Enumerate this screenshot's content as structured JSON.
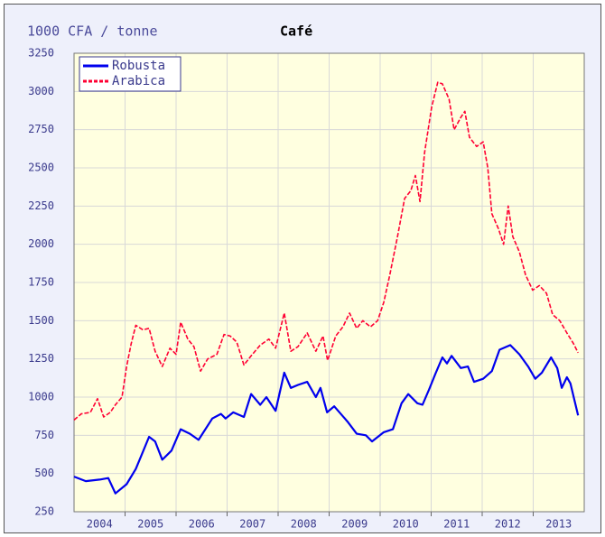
{
  "chart_data": {
    "type": "line",
    "title": "Café",
    "ylabel": "1000 CFA / tonne",
    "xlim": [
      2004,
      2014
    ],
    "ylim": [
      250,
      3250
    ],
    "yticks": [
      250,
      500,
      750,
      1000,
      1250,
      1500,
      1750,
      2000,
      2250,
      2500,
      2750,
      3000,
      3250
    ],
    "xticks": [
      {
        "value": 2004.5,
        "label": "2004"
      },
      {
        "value": 2005.5,
        "label": "2005"
      },
      {
        "value": 2006.5,
        "label": "2006"
      },
      {
        "value": 2007.5,
        "label": "2007"
      },
      {
        "value": 2008.5,
        "label": "2008"
      },
      {
        "value": 2009.5,
        "label": "2009"
      },
      {
        "value": 2010.5,
        "label": "2010"
      },
      {
        "value": 2011.5,
        "label": "2011"
      },
      {
        "value": 2012.5,
        "label": "2012"
      },
      {
        "value": 2013.5,
        "label": "2013"
      }
    ],
    "xgrid": [
      2005,
      2006,
      2007,
      2008,
      2009,
      2010,
      2011,
      2012,
      2013
    ],
    "grid": true,
    "legend": "upper left",
    "series": [
      {
        "name": "Robusta",
        "color": "#0000ee",
        "dashed": false,
        "x": [
          2004,
          2004.23,
          2004.5,
          2004.67,
          2004.81,
          2005.03,
          2005.21,
          2005.47,
          2005.59,
          2005.73,
          2005.91,
          2006.09,
          2006.27,
          2006.44,
          2006.71,
          2006.88,
          2006.97,
          2007.12,
          2007.33,
          2007.47,
          2007.65,
          2007.77,
          2007.95,
          2008.12,
          2008.25,
          2008.39,
          2008.57,
          2008.74,
          2008.83,
          2008.96,
          2009.1,
          2009.36,
          2009.54,
          2009.72,
          2009.84,
          2010.07,
          2010.25,
          2010.42,
          2010.55,
          2010.73,
          2010.83,
          2010.96,
          2011.08,
          2011.22,
          2011.31,
          2011.4,
          2011.58,
          2011.72,
          2011.84,
          2012.02,
          2012.19,
          2012.34,
          2012.55,
          2012.73,
          2012.9,
          2013.04,
          2013.17,
          2013.35,
          2013.47,
          2013.56,
          2013.66,
          2013.73,
          2013.88
        ],
        "values": [
          480,
          450,
          460,
          470,
          370,
          430,
          530,
          740,
          710,
          590,
          650,
          790,
          760,
          720,
          860,
          890,
          860,
          900,
          870,
          1020,
          950,
          1000,
          910,
          1160,
          1060,
          1080,
          1100,
          1000,
          1060,
          900,
          940,
          840,
          760,
          750,
          710,
          770,
          790,
          960,
          1020,
          960,
          950,
          1050,
          1150,
          1260,
          1220,
          1270,
          1190,
          1200,
          1100,
          1120,
          1170,
          1310,
          1340,
          1280,
          1200,
          1120,
          1160,
          1260,
          1190,
          1060,
          1130,
          1090,
          880
        ]
      },
      {
        "name": "Arabica",
        "color": "#ff0033",
        "dashed": true,
        "x": [
          2004,
          2004.14,
          2004.32,
          2004.46,
          2004.58,
          2004.71,
          2004.81,
          2004.94,
          2005.03,
          2005.12,
          2005.21,
          2005.35,
          2005.47,
          2005.59,
          2005.73,
          2005.88,
          2006,
          2006.09,
          2006.23,
          2006.35,
          2006.48,
          2006.62,
          2006.8,
          2006.94,
          2007.06,
          2007.19,
          2007.33,
          2007.47,
          2007.65,
          2007.82,
          2007.95,
          2008.12,
          2008.25,
          2008.39,
          2008.57,
          2008.74,
          2008.88,
          2008.97,
          2009.13,
          2009.27,
          2009.4,
          2009.54,
          2009.66,
          2009.81,
          2009.95,
          2010.07,
          2010.19,
          2010.34,
          2010.48,
          2010.6,
          2010.69,
          2010.78,
          2010.87,
          2011.01,
          2011.13,
          2011.22,
          2011.35,
          2011.45,
          2011.58,
          2011.66,
          2011.75,
          2011.89,
          2012.02,
          2012.11,
          2012.19,
          2012.32,
          2012.42,
          2012.51,
          2012.6,
          2012.73,
          2012.85,
          2012.99,
          2013.12,
          2013.26,
          2013.38,
          2013.52,
          2013.66,
          2013.79,
          2013.88
        ],
        "values": [
          850,
          890,
          900,
          990,
          870,
          900,
          950,
          1000,
          1200,
          1350,
          1470,
          1440,
          1450,
          1300,
          1200,
          1320,
          1280,
          1490,
          1380,
          1330,
          1170,
          1250,
          1280,
          1410,
          1400,
          1360,
          1210,
          1270,
          1340,
          1380,
          1320,
          1550,
          1300,
          1330,
          1420,
          1300,
          1400,
          1240,
          1400,
          1460,
          1550,
          1450,
          1500,
          1460,
          1500,
          1620,
          1800,
          2050,
          2300,
          2350,
          2450,
          2280,
          2600,
          2900,
          3060,
          3050,
          2950,
          2750,
          2830,
          2870,
          2700,
          2640,
          2670,
          2500,
          2200,
          2100,
          2000,
          2250,
          2050,
          1950,
          1800,
          1700,
          1730,
          1680,
          1540,
          1500,
          1420,
          1350,
          1290
        ]
      }
    ]
  }
}
